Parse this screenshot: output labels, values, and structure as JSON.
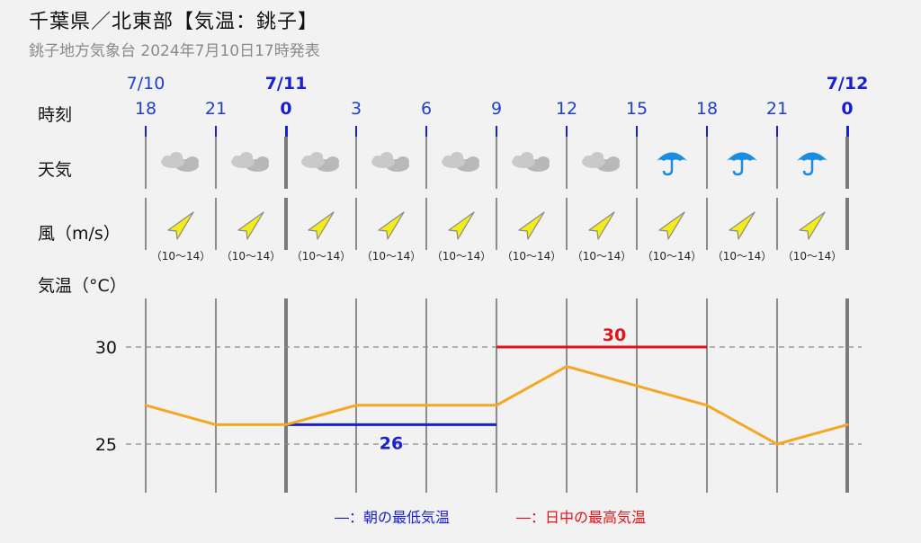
{
  "header": {
    "title": "千葉県／北東部【気温：銚子】",
    "subtitle": "銚子地方気象台 2024年7月10日17時発表"
  },
  "row_labels": {
    "time": "時刻",
    "weather": "天気",
    "wind": "風（m/s）",
    "temperature": "気温（°C）"
  },
  "dates": [
    {
      "label": "7/10",
      "bold": false
    },
    {
      "label": "7/11",
      "bold": true
    },
    {
      "label": "7/12",
      "bold": true
    }
  ],
  "hours": [
    {
      "label": "18",
      "bold": false
    },
    {
      "label": "21",
      "bold": false
    },
    {
      "label": "0",
      "bold": true
    },
    {
      "label": "3",
      "bold": false
    },
    {
      "label": "6",
      "bold": false
    },
    {
      "label": "9",
      "bold": false
    },
    {
      "label": "12",
      "bold": false
    },
    {
      "label": "15",
      "bold": false
    },
    {
      "label": "18",
      "bold": false
    },
    {
      "label": "21",
      "bold": false
    },
    {
      "label": "0",
      "bold": true
    }
  ],
  "weather": [
    "cloud-icon",
    "cloud-icon",
    "cloud-icon",
    "cloud-icon",
    "cloud-icon",
    "cloud-icon",
    "cloud-icon",
    "umbrella-icon",
    "umbrella-icon",
    "umbrella-icon"
  ],
  "wind": [
    {
      "icon": "wind-arrow-icon",
      "text": "（10〜14）"
    },
    {
      "icon": "wind-arrow-icon",
      "text": "（10〜14）"
    },
    {
      "icon": "wind-arrow-icon",
      "text": "（10〜14）"
    },
    {
      "icon": "wind-arrow-icon",
      "text": "（10〜14）"
    },
    {
      "icon": "wind-arrow-icon",
      "text": "（10〜14）"
    },
    {
      "icon": "wind-arrow-icon",
      "text": "（10〜14）"
    },
    {
      "icon": "wind-arrow-icon",
      "text": "（10〜14）"
    },
    {
      "icon": "wind-arrow-icon",
      "text": "（10〜14）"
    },
    {
      "icon": "wind-arrow-icon",
      "text": "（10〜14）"
    },
    {
      "icon": "wind-arrow-icon",
      "text": "（10〜14）"
    }
  ],
  "legend": {
    "low": "―：朝の最低気温",
    "high": "―：日中の最高気温"
  },
  "colors": {
    "temp_line": "#f5a623",
    "high": "#e0141a",
    "low": "#1a1fd0",
    "wind_arrow": "#f2ec1a"
  },
  "chart_data": {
    "type": "line",
    "x": [
      "18",
      "21",
      "0",
      "3",
      "6",
      "9",
      "12",
      "15",
      "18",
      "21",
      "0"
    ],
    "series": [
      {
        "values": [
          27,
          26,
          26,
          27,
          27,
          27,
          29,
          28,
          27,
          25,
          26
        ]
      }
    ],
    "min_temp": {
      "value": 26,
      "label": "26",
      "from_index": 2,
      "to_index": 5
    },
    "max_temp": {
      "value": 30,
      "label": "30",
      "from_index": 5,
      "to_index": 8
    },
    "y_ticks": [
      {
        "value": 30,
        "label": "30"
      },
      {
        "value": 25,
        "label": "25"
      }
    ],
    "ylim": [
      22.5,
      32.5
    ],
    "grid": true
  }
}
